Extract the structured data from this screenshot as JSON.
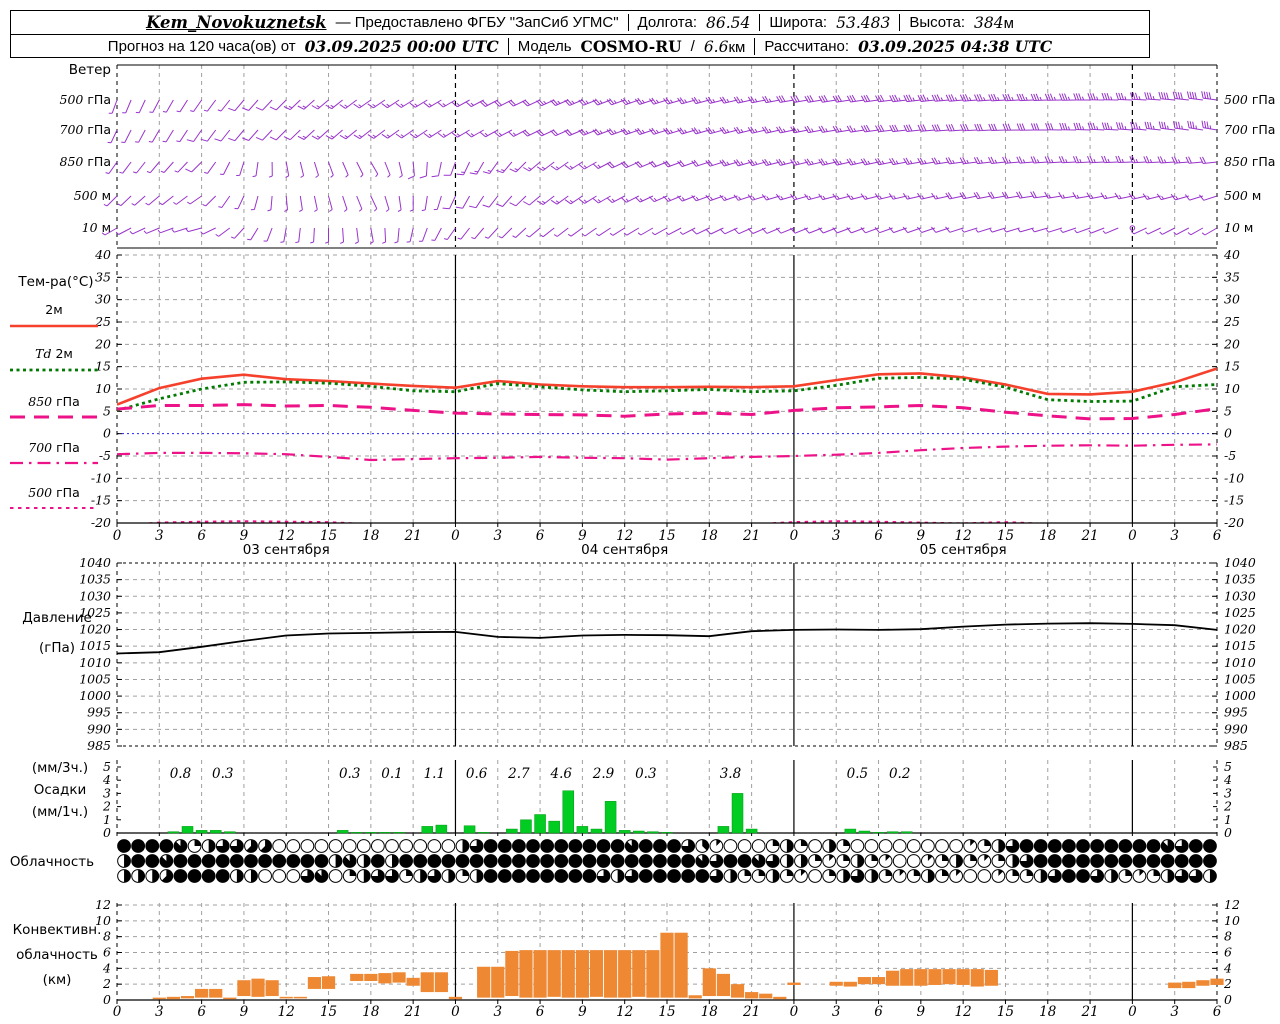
{
  "header": {
    "station": "Kem_Novokuznetsk",
    "provider": "— Предоставлено ФГБУ \"ЗапСиб УГМС\"",
    "lon_label": "Долгота:",
    "lon_value": "86.54",
    "lat_label": "Широта:",
    "lat_value": "53.483",
    "alt_label": "Высота:",
    "alt_value": "384",
    "alt_unit": "м",
    "forecast_prefix": "Прогноз на 120 часа(ов) от",
    "run_time": "03.09.2025 00:00 UTC",
    "model_label": "Модель",
    "model_name": "COSMO-RU",
    "model_sep": "/",
    "model_res": "6.6",
    "model_res_unit": "км",
    "calc_label": "Рассчитано:",
    "calc_time": "03.09.2025 04:38 UTC"
  },
  "x_axis": {
    "step_hours": 3,
    "total_hours": 78,
    "dates": [
      {
        "label": "03 сентября",
        "center_h": 12
      },
      {
        "label": "04 сентября",
        "center_h": 36
      },
      {
        "label": "05 сентября",
        "center_h": 60
      }
    ]
  },
  "chart_data": [
    {
      "type": "wind-barbs",
      "name": "wind",
      "label": "Ветер",
      "color": "#9933cc",
      "control_step_h": 6,
      "series": [
        {
          "level": "500 гПа",
          "dir": [
            200,
            215,
            225,
            235,
            240,
            245,
            250,
            255,
            260,
            262,
            265,
            268,
            272,
            278
          ],
          "spd": [
            5,
            8,
            12,
            15,
            18,
            22,
            25,
            28,
            30,
            32,
            34,
            36,
            38,
            42
          ]
        },
        {
          "level": "700 гПа",
          "dir": [
            205,
            215,
            225,
            232,
            238,
            244,
            250,
            254,
            258,
            262,
            266,
            270,
            274,
            280
          ],
          "spd": [
            8,
            10,
            12,
            14,
            16,
            20,
            24,
            26,
            28,
            30,
            30,
            32,
            34,
            36
          ]
        },
        {
          "level": "850 гПа",
          "dir": [
            215,
            225,
            170,
            150,
            200,
            230,
            245,
            252,
            256,
            258,
            262,
            266,
            268,
            264
          ],
          "spd": [
            8,
            10,
            8,
            8,
            12,
            16,
            20,
            22,
            24,
            24,
            26,
            26,
            24,
            22
          ]
        },
        {
          "level": "500 м",
          "dir": [
            225,
            235,
            175,
            155,
            205,
            230,
            242,
            250,
            254,
            256,
            258,
            262,
            258,
            252
          ],
          "spd": [
            8,
            8,
            6,
            6,
            10,
            12,
            16,
            18,
            18,
            18,
            20,
            20,
            14,
            12
          ]
        },
        {
          "level": "10 м",
          "dir": [
            240,
            255,
            190,
            170,
            215,
            230,
            238,
            244,
            248,
            250,
            252,
            254,
            246,
            240
          ],
          "spd": [
            3,
            5,
            4,
            4,
            6,
            8,
            8,
            10,
            10,
            10,
            10,
            8,
            2,
            5
          ]
        }
      ]
    },
    {
      "type": "line",
      "name": "temperature",
      "title": "Тем-ра(°C)",
      "ylim": [
        -20,
        40
      ],
      "ytick_step": 5,
      "x_step_h": 3,
      "zero_line_color": "#2222ff",
      "series": [
        {
          "name": "2м",
          "color": "#f5402c",
          "dash": "solid",
          "values": [
            6.5,
            10.2,
            12.3,
            13.2,
            12.2,
            11.8,
            11.2,
            10.7,
            10.3,
            11.8,
            11.0,
            10.6,
            10.4,
            10.4,
            10.5,
            10.4,
            10.6,
            12.0,
            13.3,
            13.5,
            12.6,
            11.0,
            8.9,
            8.8,
            9.4,
            11.5,
            14.6
          ]
        },
        {
          "name": "Td 2м",
          "color": "#007a00",
          "dash": "dotted",
          "values": [
            5.2,
            7.8,
            10.0,
            11.5,
            11.6,
            11.3,
            10.6,
            9.6,
            9.4,
            11.2,
            10.5,
            9.8,
            9.4,
            9.6,
            9.9,
            9.4,
            9.6,
            10.8,
            12.4,
            12.6,
            12.2,
            10.4,
            7.6,
            7.2,
            7.3,
            10.5,
            11.0
          ]
        },
        {
          "name": "850 гПа",
          "color": "#ee1289",
          "dash": "longdash",
          "values": [
            5.5,
            6.3,
            6.3,
            6.5,
            6.2,
            6.3,
            5.9,
            5.2,
            4.6,
            4.4,
            4.3,
            4.2,
            3.9,
            4.4,
            4.6,
            4.3,
            5.2,
            5.8,
            6.0,
            6.3,
            5.8,
            4.8,
            4.0,
            3.3,
            3.4,
            4.3,
            5.6
          ]
        },
        {
          "name": "700 гПа",
          "color": "#ee1289",
          "dash": "dashdot",
          "values": [
            -4.6,
            -4.3,
            -4.3,
            -4.4,
            -4.6,
            -5.2,
            -5.9,
            -5.7,
            -5.5,
            -5.4,
            -5.2,
            -5.4,
            -5.5,
            -5.8,
            -5.5,
            -5.2,
            -5.0,
            -4.7,
            -4.3,
            -3.7,
            -3.2,
            -2.9,
            -2.7,
            -2.6,
            -2.7,
            -2.5,
            -2.4
          ]
        },
        {
          "name": "500 гПа",
          "color": "#ee1289",
          "dash": "shortdash",
          "values": [
            -20.6,
            -19.9,
            -19.7,
            -19.6,
            -19.7,
            -19.8,
            -20.3,
            -20.6,
            -20.7,
            -20.4,
            -20.2,
            -20.5,
            -20.7,
            -20.6,
            -20.5,
            -20.3,
            -19.8,
            -19.6,
            -19.7,
            -19.9,
            -20.1,
            -19.8,
            -20.2,
            -20.6,
            -20.8,
            -20.7,
            -20.5
          ]
        }
      ]
    },
    {
      "type": "line",
      "name": "pressure",
      "label_lines": [
        "Давление",
        "(гПа)"
      ],
      "ylim": [
        985,
        1040
      ],
      "ytick_step": 5,
      "x_step_h": 3,
      "color": "#000000",
      "values": [
        1012.8,
        1013.2,
        1014.8,
        1016.6,
        1018.2,
        1018.8,
        1019.0,
        1019.2,
        1019.3,
        1017.8,
        1017.5,
        1018.2,
        1018.4,
        1018.3,
        1018.0,
        1019.5,
        1019.9,
        1020.0,
        1019.9,
        1020.1,
        1020.9,
        1021.5,
        1021.8,
        1021.9,
        1021.7,
        1021.3,
        1019.9
      ]
    },
    {
      "type": "bar",
      "name": "precipitation",
      "label_lines": [
        "(мм/3ч.)",
        "Осадки",
        "(мм/1ч.)"
      ],
      "ylim": [
        0,
        5
      ],
      "color": "#00cc22",
      "sums_3h": [
        {
          "start_h": 3,
          "value": "0.8"
        },
        {
          "start_h": 6,
          "value": "0.3"
        },
        {
          "start_h": 15,
          "value": "0.3"
        },
        {
          "start_h": 18,
          "value": "0.1"
        },
        {
          "start_h": 21,
          "value": "1.1"
        },
        {
          "start_h": 24,
          "value": "0.6"
        },
        {
          "start_h": 27,
          "value": "2.7"
        },
        {
          "start_h": 30,
          "value": "4.6"
        },
        {
          "start_h": 33,
          "value": "2.9"
        },
        {
          "start_h": 36,
          "value": "0.3"
        },
        {
          "start_h": 42,
          "value": "3.8"
        },
        {
          "start_h": 51,
          "value": "0.5"
        },
        {
          "start_h": 54,
          "value": "0.2"
        }
      ],
      "hourly_mm": [
        [
          4,
          0.1
        ],
        [
          5,
          0.5
        ],
        [
          6,
          0.2
        ],
        [
          7,
          0.2
        ],
        [
          8,
          0.1
        ],
        [
          16,
          0.2
        ],
        [
          17,
          0.05
        ],
        [
          18,
          0.05
        ],
        [
          19,
          0.05
        ],
        [
          20,
          0.05
        ],
        [
          22,
          0.5
        ],
        [
          23,
          0.6
        ],
        [
          25,
          0.55
        ],
        [
          26,
          0.05
        ],
        [
          28,
          0.3
        ],
        [
          29,
          1.0
        ],
        [
          30,
          1.4
        ],
        [
          31,
          0.9
        ],
        [
          32,
          3.2
        ],
        [
          33,
          0.5
        ],
        [
          34,
          0.3
        ],
        [
          35,
          2.4
        ],
        [
          36,
          0.2
        ],
        [
          37,
          0.15
        ],
        [
          38,
          0.1
        ],
        [
          39,
          0.05
        ],
        [
          43,
          0.5
        ],
        [
          44,
          3.0
        ],
        [
          45,
          0.3
        ],
        [
          52,
          0.3
        ],
        [
          53,
          0.15
        ],
        [
          54,
          0.05
        ],
        [
          55,
          0.1
        ],
        [
          56,
          0.1
        ]
      ]
    },
    {
      "type": "symbols",
      "name": "cloud-cover",
      "label": "Облачность",
      "octas_rows": [
        "888872466550000000000000468888888888788863100024204200000000124688888888887688",
        "488788888888888474848888888888888888888887688764421242100124212468888888888888",
        "444588884400067024662464248888888864688888642242102464212421001224688642124664"
      ]
    },
    {
      "type": "range-bar",
      "name": "convective-cloud",
      "label_lines": [
        "Конвективн.",
        "облачность",
        "(км)"
      ],
      "ylim": [
        0,
        12
      ],
      "ytick_step": 2,
      "color": "#ee8833",
      "bars_km": [
        [
          3,
          0.1,
          0.3
        ],
        [
          4,
          0.1,
          0.4
        ],
        [
          5,
          0.2,
          0.5
        ],
        [
          6,
          0.3,
          1.4
        ],
        [
          7,
          0.3,
          1.4
        ],
        [
          8,
          0.1,
          0.3
        ],
        [
          9,
          0.5,
          2.5
        ],
        [
          10,
          0.4,
          2.7
        ],
        [
          11,
          0.5,
          2.5
        ],
        [
          12,
          0.2,
          0.4
        ],
        [
          13,
          0.2,
          0.4
        ],
        [
          14,
          1.4,
          2.9
        ],
        [
          15,
          1.4,
          3.0
        ],
        [
          17,
          2.4,
          3.3
        ],
        [
          18,
          2.4,
          3.3
        ],
        [
          19,
          2.1,
          3.4
        ],
        [
          20,
          2.2,
          3.5
        ],
        [
          21,
          1.8,
          2.8
        ],
        [
          22,
          1.0,
          3.5
        ],
        [
          23,
          1.0,
          3.5
        ],
        [
          24,
          0.1,
          0.4
        ],
        [
          26,
          0.3,
          4.2
        ],
        [
          27,
          0.3,
          4.2
        ],
        [
          28,
          0.5,
          6.2
        ],
        [
          29,
          0.3,
          6.3
        ],
        [
          30,
          0.3,
          6.3
        ],
        [
          31,
          0.4,
          6.3
        ],
        [
          32,
          0.3,
          6.3
        ],
        [
          33,
          0.3,
          6.3
        ],
        [
          34,
          0.4,
          6.3
        ],
        [
          35,
          0.3,
          6.3
        ],
        [
          36,
          0.3,
          6.3
        ],
        [
          37,
          0.4,
          6.3
        ],
        [
          38,
          0.3,
          6.3
        ],
        [
          39,
          0.3,
          8.5
        ],
        [
          40,
          0.3,
          8.5
        ],
        [
          41,
          0.2,
          0.6
        ],
        [
          42,
          0.5,
          4.0
        ],
        [
          43,
          0.5,
          3.3
        ],
        [
          44,
          0.3,
          2.0
        ],
        [
          45,
          0.2,
          1.0
        ],
        [
          46,
          0.2,
          0.8
        ],
        [
          47,
          0.1,
          0.4
        ],
        [
          48,
          1.9,
          2.2
        ],
        [
          51,
          1.8,
          2.3
        ],
        [
          52,
          1.7,
          2.3
        ],
        [
          53,
          2.0,
          2.9
        ],
        [
          54,
          2.0,
          2.9
        ],
        [
          55,
          1.8,
          3.7
        ],
        [
          56,
          1.8,
          3.9
        ],
        [
          57,
          1.8,
          3.9
        ],
        [
          58,
          1.9,
          3.9
        ],
        [
          59,
          2.0,
          3.9
        ],
        [
          60,
          1.9,
          3.9
        ],
        [
          61,
          1.7,
          3.9
        ],
        [
          62,
          1.8,
          3.8
        ],
        [
          75,
          1.5,
          2.2
        ],
        [
          76,
          1.5,
          2.3
        ],
        [
          77,
          1.8,
          2.5
        ],
        [
          78,
          1.9,
          2.7
        ]
      ]
    }
  ]
}
